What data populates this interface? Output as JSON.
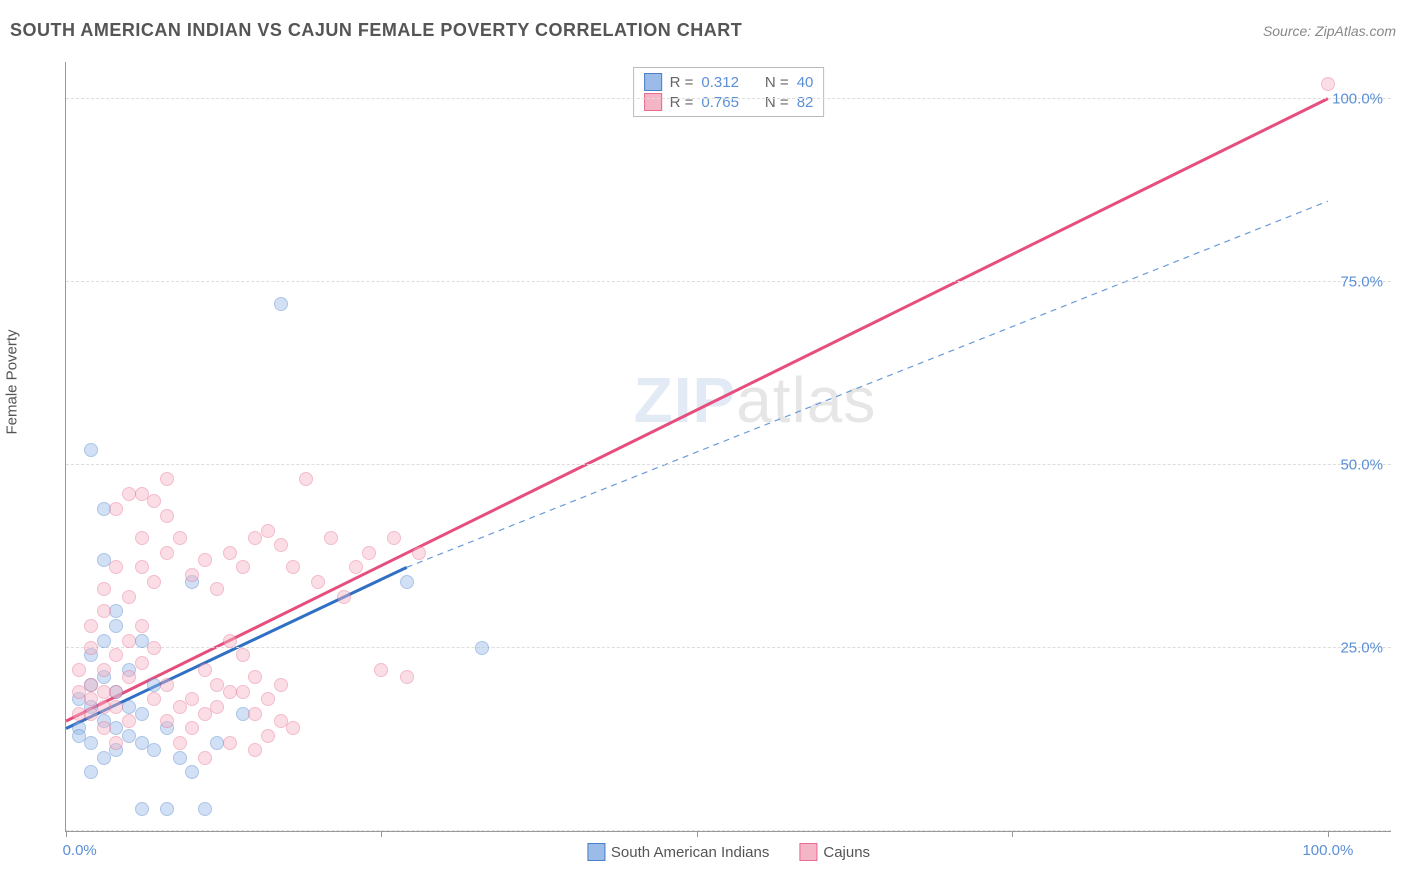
{
  "header": {
    "title": "SOUTH AMERICAN INDIAN VS CAJUN FEMALE POVERTY CORRELATION CHART",
    "source_prefix": "Source: ",
    "source": "ZipAtlas.com"
  },
  "watermark": {
    "bold": "ZIP",
    "thin": "atlas"
  },
  "chart": {
    "type": "scatter",
    "y_axis_label": "Female Poverty",
    "xlim": [
      0,
      105
    ],
    "ylim": [
      0,
      105
    ],
    "y_ticks": [
      0,
      25,
      50,
      75,
      100
    ],
    "y_tick_labels": [
      "0.0%",
      "25.0%",
      "50.0%",
      "75.0%",
      "100.0%"
    ],
    "x_ticks": [
      0,
      25,
      50,
      75,
      100
    ],
    "x_tick_labels_shown": {
      "0": "0.0%",
      "100": "100.0%"
    },
    "grid_color": "#dddddd",
    "axis_color": "#999999",
    "background_color": "#ffffff",
    "marker_radius": 7,
    "marker_opacity": 0.45,
    "marker_border_width": 1,
    "series": [
      {
        "key": "sai",
        "name": "South American Indians",
        "fill": "#9bbce8",
        "stroke": "#4a7fc9",
        "line_color": "#2f6fc4",
        "line_width": 3,
        "dash_color": "#6a9bd8",
        "r_label": "R = ",
        "r_value": "0.312",
        "n_label": "N = ",
        "n_value": "40",
        "trend": {
          "x1": 0,
          "y1": 14,
          "x2": 27,
          "y2": 36
        },
        "trend_dash": {
          "x1": 27,
          "y1": 36,
          "x2": 100,
          "y2": 86
        },
        "points": [
          [
            1,
            14
          ],
          [
            2,
            12
          ],
          [
            3,
            10
          ],
          [
            2,
            8
          ],
          [
            4,
            11
          ],
          [
            3,
            15
          ],
          [
            1,
            18
          ],
          [
            2,
            20
          ],
          [
            5,
            13
          ],
          [
            3,
            37
          ],
          [
            2,
            52
          ],
          [
            4,
            28
          ],
          [
            6,
            26
          ],
          [
            5,
            22
          ],
          [
            7,
            20
          ],
          [
            6,
            16
          ],
          [
            8,
            14
          ],
          [
            7,
            11
          ],
          [
            9,
            10
          ],
          [
            10,
            8
          ],
          [
            8,
            3
          ],
          [
            11,
            3
          ],
          [
            6,
            3
          ],
          [
            4,
            30
          ],
          [
            10,
            34
          ],
          [
            3,
            26
          ],
          [
            33,
            25
          ],
          [
            27,
            34
          ],
          [
            14,
            16
          ],
          [
            12,
            12
          ],
          [
            3,
            44
          ],
          [
            17,
            72
          ],
          [
            2,
            17
          ],
          [
            1,
            13
          ],
          [
            4,
            19
          ],
          [
            5,
            17
          ],
          [
            2,
            24
          ],
          [
            3,
            21
          ],
          [
            4,
            14
          ],
          [
            6,
            12
          ]
        ]
      },
      {
        "key": "cajun",
        "name": "Cajuns",
        "fill": "#f4b6c6",
        "stroke": "#e86a8e",
        "line_color": "#e64f7d",
        "line_width": 3,
        "r_label": "R = ",
        "r_value": "0.765",
        "n_label": "N = ",
        "n_value": "82",
        "trend": {
          "x1": 0,
          "y1": 15,
          "x2": 100,
          "y2": 100
        },
        "points": [
          [
            1,
            16
          ],
          [
            2,
            18
          ],
          [
            3,
            17
          ],
          [
            2,
            20
          ],
          [
            4,
            19
          ],
          [
            3,
            22
          ],
          [
            5,
            21
          ],
          [
            4,
            24
          ],
          [
            6,
            23
          ],
          [
            5,
            26
          ],
          [
            7,
            25
          ],
          [
            6,
            28
          ],
          [
            8,
            20
          ],
          [
            7,
            18
          ],
          [
            9,
            17
          ],
          [
            8,
            15
          ],
          [
            10,
            14
          ],
          [
            9,
            12
          ],
          [
            11,
            16
          ],
          [
            10,
            18
          ],
          [
            12,
            20
          ],
          [
            11,
            22
          ],
          [
            13,
            19
          ],
          [
            12,
            17
          ],
          [
            14,
            24
          ],
          [
            13,
            26
          ],
          [
            15,
            21
          ],
          [
            14,
            19
          ],
          [
            16,
            18
          ],
          [
            15,
            16
          ],
          [
            17,
            15
          ],
          [
            16,
            13
          ],
          [
            18,
            14
          ],
          [
            17,
            20
          ],
          [
            3,
            30
          ],
          [
            5,
            32
          ],
          [
            7,
            34
          ],
          [
            6,
            36
          ],
          [
            8,
            38
          ],
          [
            9,
            40
          ],
          [
            11,
            37
          ],
          [
            10,
            35
          ],
          [
            12,
            33
          ],
          [
            14,
            36
          ],
          [
            13,
            38
          ],
          [
            15,
            40
          ],
          [
            17,
            39
          ],
          [
            16,
            41
          ],
          [
            4,
            44
          ],
          [
            6,
            46
          ],
          [
            8,
            48
          ],
          [
            18,
            36
          ],
          [
            20,
            34
          ],
          [
            22,
            32
          ],
          [
            24,
            38
          ],
          [
            26,
            40
          ],
          [
            28,
            38
          ],
          [
            27,
            21
          ],
          [
            19,
            48
          ],
          [
            21,
            40
          ],
          [
            23,
            36
          ],
          [
            25,
            22
          ],
          [
            11,
            10
          ],
          [
            13,
            12
          ],
          [
            15,
            11
          ],
          [
            5,
            46
          ],
          [
            7,
            45
          ],
          [
            3,
            14
          ],
          [
            4,
            12
          ],
          [
            2,
            25
          ],
          [
            1,
            22
          ],
          [
            2,
            28
          ],
          [
            3,
            33
          ],
          [
            4,
            36
          ],
          [
            6,
            40
          ],
          [
            8,
            43
          ],
          [
            100,
            102
          ],
          [
            1,
            19
          ],
          [
            2,
            16
          ],
          [
            3,
            19
          ],
          [
            4,
            17
          ],
          [
            5,
            15
          ]
        ]
      }
    ]
  },
  "legend_bottom": [
    {
      "swatch_fill": "#9bbce8",
      "swatch_stroke": "#4a7fc9",
      "label": "South American Indians"
    },
    {
      "swatch_fill": "#f4b6c6",
      "swatch_stroke": "#e86a8e",
      "label": "Cajuns"
    }
  ]
}
